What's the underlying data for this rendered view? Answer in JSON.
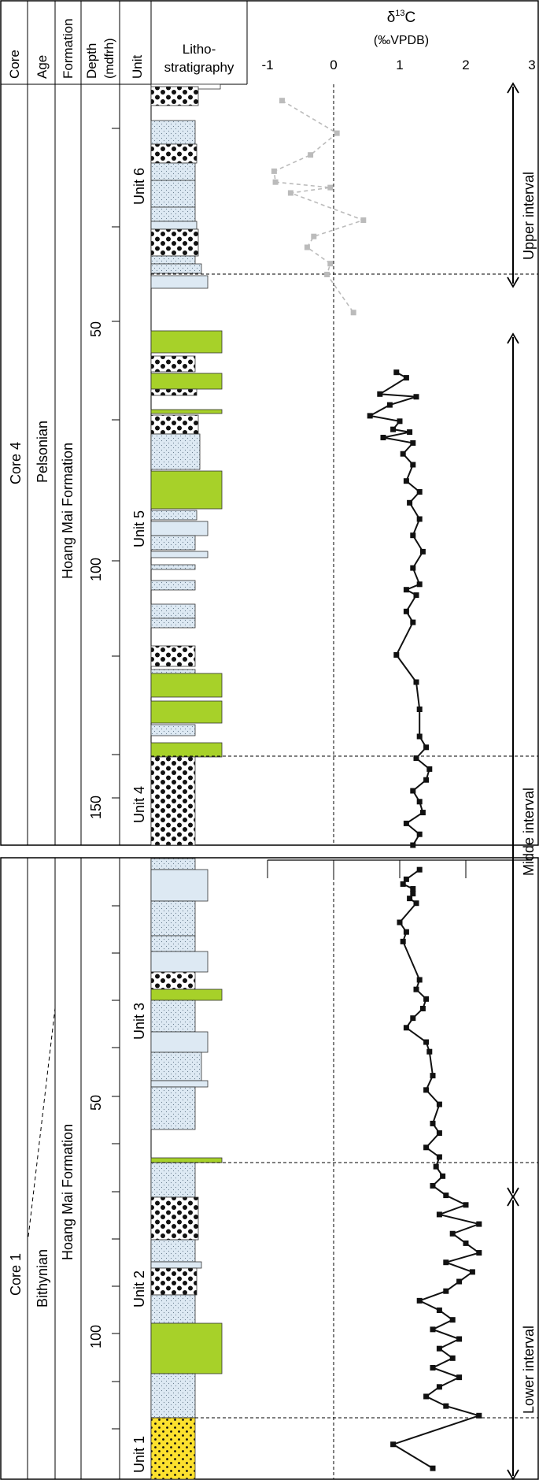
{
  "headers": {
    "core": "Core",
    "age": "Age",
    "formation": "Formation",
    "depth_line1": "Depth",
    "depth_line2": "(mdfrh)",
    "unit": "Unit",
    "litho_line1": "Litho-",
    "litho_line2": "stratigraphy",
    "delta_symbol": "δ",
    "delta_sup": "13",
    "delta_rest": "C",
    "delta_units": "(‰VPDB)"
  },
  "x_axis": {
    "min": -1,
    "max": 3,
    "ticks": [
      "-1",
      "0",
      "1",
      "2",
      "3"
    ]
  },
  "core4": {
    "core_label": "Core 4",
    "age_label": "Pelsonian",
    "formation_label": "Hoang Mai Formation",
    "depth_ticks": [
      "50",
      "100",
      "150"
    ],
    "units": [
      "Unit 6",
      "Unit 5",
      "Unit 4"
    ]
  },
  "core1": {
    "core_label": "Core 1",
    "age_label": "Bithynian",
    "formation_label": "Hoang Mai Formation",
    "depth_ticks": [
      "50",
      "100"
    ],
    "units": [
      "Unit 3",
      "Unit 2",
      "Unit 1"
    ]
  },
  "intervals": [
    "Upper interval",
    "Midde interval",
    "Lower interval"
  ],
  "colors": {
    "sandy_limestone": "#dde9f3",
    "ooid_grainstone": "#ffffff",
    "green_layer": "#a7d129",
    "yellow_layer": "#fde12e",
    "upper_series": "#bbbbbb",
    "main_series": "#111111"
  },
  "chart_data": [
    {
      "type": "line",
      "name": "Core 4",
      "xlabel": "δ13C (‰VPDB)",
      "ylabel": "Depth (mdfrh)",
      "xlim": [
        -1,
        3
      ],
      "ylim": [
        20,
        160
      ],
      "series": [
        {
          "points": [
            [
              -0.78,
              23
            ],
            [
              0.05,
              29
            ],
            [
              -0.35,
              33
            ],
            [
              -0.9,
              36
            ],
            [
              -0.88,
              38
            ],
            [
              -0.05,
              39
            ],
            [
              -0.65,
              40
            ],
            [
              0.45,
              45
            ],
            [
              -0.3,
              48
            ],
            [
              -0.4,
              50
            ],
            [
              -0.05,
              53
            ],
            [
              -0.1,
              55
            ],
            [
              0.3,
              62
            ]
          ]
        },
        {
          "points": [
            [
              0.95,
              73
            ],
            [
              1.1,
              74
            ],
            [
              0.7,
              77
            ],
            [
              1.25,
              77.5
            ],
            [
              0.85,
              79
            ],
            [
              0.55,
              81
            ],
            [
              1.0,
              82
            ],
            [
              0.9,
              83.5
            ],
            [
              1.15,
              84
            ],
            [
              0.75,
              85
            ],
            [
              1.2,
              86
            ],
            [
              1.05,
              88
            ],
            [
              1.2,
              90
            ],
            [
              1.1,
              93
            ],
            [
              1.3,
              95
            ],
            [
              1.15,
              97
            ],
            [
              1.3,
              100
            ],
            [
              1.2,
              103
            ],
            [
              1.35,
              106
            ],
            [
              1.2,
              109
            ],
            [
              1.3,
              112
            ],
            [
              1.1,
              113
            ],
            [
              1.25,
              114
            ],
            [
              1.1,
              117
            ],
            [
              1.2,
              119
            ],
            [
              0.95,
              125
            ],
            [
              1.25,
              130
            ],
            [
              1.3,
              135
            ],
            [
              1.3,
              140
            ],
            [
              1.4,
              142
            ],
            [
              1.25,
              144
            ],
            [
              1.45,
              146
            ],
            [
              1.4,
              148
            ],
            [
              1.2,
              150
            ],
            [
              1.3,
              152
            ],
            [
              1.35,
              154
            ],
            [
              1.1,
              156
            ],
            [
              1.3,
              158
            ],
            [
              1.2,
              160
            ]
          ]
        }
      ]
    },
    {
      "type": "line",
      "name": "Core 1",
      "xlabel": "δ13C (‰VPDB)",
      "ylabel": "Depth (mdfrh)",
      "xlim": [
        -1,
        3
      ],
      "ylim": [
        0,
        128
      ],
      "series": [
        {
          "points": [
            [
              1.3,
              2
            ],
            [
              1.1,
              4
            ],
            [
              1.05,
              5
            ],
            [
              1.2,
              6
            ],
            [
              1.2,
              7
            ],
            [
              1.15,
              8
            ],
            [
              1.25,
              9
            ],
            [
              1.0,
              13
            ],
            [
              1.1,
              15
            ],
            [
              1.05,
              17
            ],
            [
              1.3,
              25
            ],
            [
              1.25,
              27
            ],
            [
              1.4,
              29
            ],
            [
              1.35,
              31
            ],
            [
              1.2,
              33
            ],
            [
              1.1,
              35
            ],
            [
              1.4,
              38
            ],
            [
              1.45,
              40
            ],
            [
              1.5,
              45
            ],
            [
              1.4,
              48
            ],
            [
              1.6,
              51
            ],
            [
              1.5,
              55
            ],
            [
              1.6,
              57
            ],
            [
              1.4,
              60
            ],
            [
              1.6,
              62
            ],
            [
              1.55,
              64
            ],
            [
              1.65,
              66
            ],
            [
              1.5,
              68
            ],
            [
              1.7,
              70
            ],
            [
              2.0,
              72
            ],
            [
              1.6,
              74
            ],
            [
              2.2,
              76
            ],
            [
              1.8,
              78
            ],
            [
              2.0,
              80
            ],
            [
              2.2,
              82
            ],
            [
              1.7,
              84
            ],
            [
              2.1,
              86
            ],
            [
              1.9,
              88
            ],
            [
              1.7,
              90
            ],
            [
              1.3,
              92
            ],
            [
              1.6,
              94
            ],
            [
              1.8,
              96
            ],
            [
              1.5,
              98
            ],
            [
              1.9,
              100
            ],
            [
              1.6,
              102
            ],
            [
              1.8,
              104
            ],
            [
              1.5,
              106
            ],
            [
              1.9,
              108
            ],
            [
              1.6,
              110
            ],
            [
              1.4,
              112
            ],
            [
              1.7,
              114
            ],
            [
              2.2,
              116
            ],
            [
              0.9,
              122
            ],
            [
              1.5,
              127
            ]
          ]
        }
      ]
    }
  ]
}
